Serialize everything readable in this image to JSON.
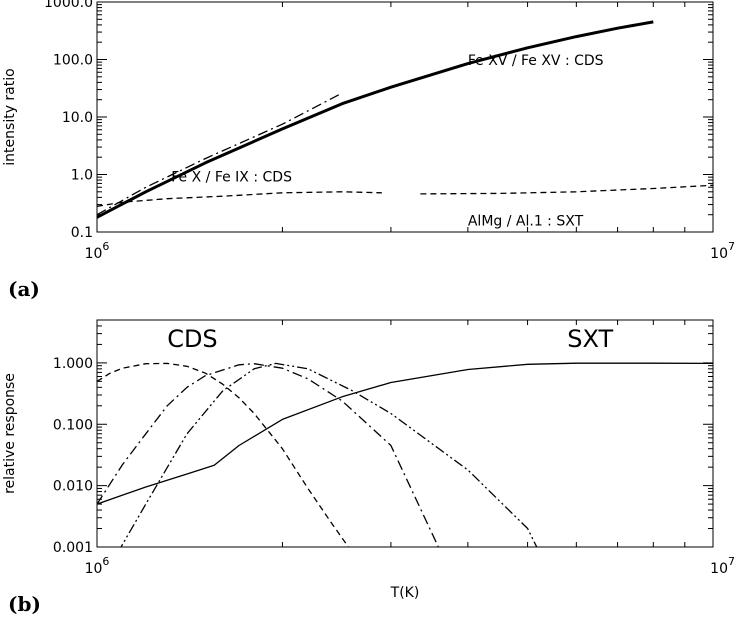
{
  "chart_data": [
    {
      "panel_label": "(a)",
      "type": "line",
      "xscale": "log",
      "yscale": "log",
      "xlim": [
        1000000,
        10000000
      ],
      "ylim": [
        0.1,
        1000
      ],
      "x_tick_labels": [
        {
          "value": 1000000,
          "base": "10",
          "exp": "6"
        },
        {
          "value": 10000000,
          "base": "10",
          "exp": "7"
        }
      ],
      "y_tick_labels": [
        {
          "value": 0.1,
          "label": "0.1"
        },
        {
          "value": 1,
          "label": "1.0"
        },
        {
          "value": 10,
          "label": "10.0"
        },
        {
          "value": 100,
          "label": "100.0"
        },
        {
          "value": 1000,
          "label": "1000.0"
        }
      ],
      "ylabel": "intensity ratio",
      "xlabel": "",
      "annotations": [
        {
          "text": "Fe XV / Fe XV : CDS",
          "x": 4000000,
          "y": 80
        },
        {
          "text": "Fe X  / Fe IX : CDS",
          "x": 1320000,
          "y": 0.75
        },
        {
          "text": "AlMg / Al.1 :  SXT",
          "x": 4000000,
          "y": 0.13
        }
      ],
      "series": [
        {
          "style": "thick-solid",
          "x": [
            1000000,
            1200000,
            1500000,
            2000000,
            2500000,
            3000000,
            4000000,
            5000000,
            6000000,
            7000000,
            8000000
          ],
          "y": [
            0.18,
            0.5,
            1.6,
            6.2,
            17,
            33,
            85,
            160,
            250,
            350,
            450
          ]
        },
        {
          "style": "dash-dot",
          "x": [
            1000000,
            1200000,
            1500000,
            2000000,
            2500000
          ],
          "y": [
            0.2,
            0.6,
            1.9,
            7.5,
            26
          ]
        },
        {
          "style": "dashed",
          "x": [
            1000000,
            1100000,
            1300000,
            1600000,
            2000000,
            2500000,
            2900000
          ],
          "y": [
            0.28,
            0.33,
            0.38,
            0.42,
            0.48,
            0.5,
            0.48
          ]
        },
        {
          "style": "dashed",
          "x": [
            3350000,
            4500000,
            6000000,
            8000000,
            10000000
          ],
          "y": [
            0.46,
            0.47,
            0.5,
            0.57,
            0.65
          ]
        }
      ]
    },
    {
      "panel_label": "(b)",
      "type": "line",
      "xscale": "log",
      "yscale": "log",
      "xlim": [
        1000000,
        10000000
      ],
      "ylim": [
        0.001,
        5
      ],
      "x_tick_labels": [
        {
          "value": 1000000,
          "base": "10",
          "exp": "6"
        },
        {
          "value": 10000000,
          "base": "10",
          "exp": "7"
        }
      ],
      "y_tick_labels": [
        {
          "value": 0.001,
          "label": "0.001"
        },
        {
          "value": 0.01,
          "label": "0.010"
        },
        {
          "value": 0.1,
          "label": "0.100"
        },
        {
          "value": 1,
          "label": "1.000"
        }
      ],
      "xlabel": "T(K)",
      "ylabel": "relative response",
      "annotations": [
        {
          "text": "CDS",
          "x": 1300000,
          "y": 1.8
        },
        {
          "text": "SXT",
          "x": 5800000,
          "y": 1.8
        }
      ],
      "series": [
        {
          "name": "SXT",
          "style": "solid",
          "x": [
            1000000,
            1200000,
            1400000,
            1550000,
            1700000,
            2000000,
            2500000,
            3000000,
            4000000,
            5000000,
            6000000,
            8000000,
            10000000
          ],
          "y": [
            0.005,
            0.0095,
            0.0155,
            0.0215,
            0.045,
            0.12,
            0.28,
            0.48,
            0.78,
            0.95,
            0.99,
            0.99,
            0.98
          ]
        },
        {
          "style": "dashed",
          "x": [
            1000000,
            1050000,
            1100000,
            1200000,
            1300000,
            1400000,
            1500000,
            1600000,
            1700000,
            1800000,
            2000000,
            2200000,
            2400000,
            2600000
          ],
          "y": [
            0.5,
            0.68,
            0.82,
            0.97,
            0.98,
            0.88,
            0.68,
            0.45,
            0.27,
            0.15,
            0.04,
            0.009,
            0.0025,
            0.0008
          ]
        },
        {
          "style": "dash-dot",
          "x": [
            1000000,
            1100000,
            1200000,
            1300000,
            1400000,
            1500000,
            1700000,
            1800000,
            2000000,
            2200000,
            2500000,
            3000000,
            3600000
          ],
          "y": [
            0.005,
            0.022,
            0.07,
            0.2,
            0.4,
            0.62,
            0.93,
            0.97,
            0.82,
            0.55,
            0.24,
            0.045,
            0.0009
          ]
        },
        {
          "style": "dash-dot-dot",
          "x": [
            1080000,
            1200000,
            1400000,
            1600000,
            1800000,
            1950000,
            2200000,
            2600000,
            3000000,
            4000000,
            5000000,
            5200000
          ],
          "y": [
            0.0008,
            0.005,
            0.07,
            0.35,
            0.8,
            0.98,
            0.8,
            0.35,
            0.15,
            0.018,
            0.002,
            0.0009
          ]
        }
      ]
    }
  ]
}
